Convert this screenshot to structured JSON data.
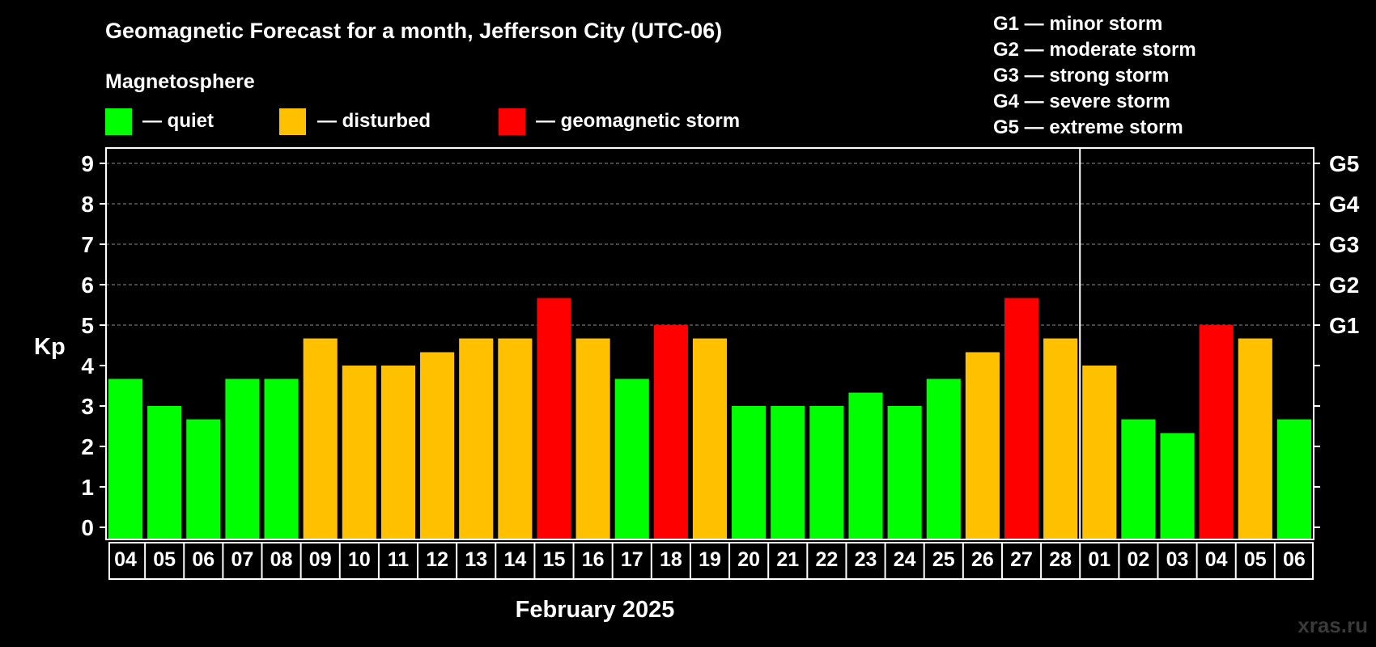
{
  "chart_data": {
    "type": "bar",
    "title": "Geomagnetic Forecast for a month, Jefferson City (UTC-06)",
    "subtitle": "Magnetosphere",
    "xlabel": "February 2025",
    "ylabel": "Kp",
    "ylim": [
      0,
      9
    ],
    "y_ticks": [
      "0",
      "1",
      "2",
      "3",
      "4",
      "5",
      "6",
      "7",
      "8",
      "9"
    ],
    "legend": [
      {
        "label": "— quiet",
        "color": "#00ff00"
      },
      {
        "label": "— disturbed",
        "color": "#ffc000"
      },
      {
        "label": "— geomagnetic storm",
        "color": "#ff0000"
      }
    ],
    "storm_scale": [
      {
        "label": "G1",
        "kp": 5
      },
      {
        "label": "G2",
        "kp": 6
      },
      {
        "label": "G3",
        "kp": 7
      },
      {
        "label": "G4",
        "kp": 8
      },
      {
        "label": "G5",
        "kp": 9
      }
    ],
    "storm_legend": [
      "G1 — minor storm",
      "G2 — moderate storm",
      "G3 — strong storm",
      "G4 — severe storm",
      "G5 — extreme storm"
    ],
    "month_divider_after": "28",
    "categories": [
      "04",
      "05",
      "06",
      "07",
      "08",
      "09",
      "10",
      "11",
      "12",
      "13",
      "14",
      "15",
      "16",
      "17",
      "18",
      "19",
      "20",
      "21",
      "22",
      "23",
      "24",
      "25",
      "26",
      "27",
      "28",
      "01",
      "02",
      "03",
      "04",
      "05",
      "06"
    ],
    "values": [
      3.67,
      3.0,
      2.67,
      3.67,
      3.67,
      4.67,
      4.0,
      4.0,
      4.33,
      4.67,
      4.67,
      5.67,
      4.67,
      3.67,
      5.0,
      4.67,
      3.0,
      3.0,
      3.0,
      3.33,
      3.0,
      3.67,
      4.33,
      5.67,
      4.67,
      4.0,
      2.67,
      2.33,
      5.0,
      4.67,
      2.67
    ],
    "levels": [
      "quiet",
      "quiet",
      "quiet",
      "quiet",
      "quiet",
      "disturbed",
      "disturbed",
      "disturbed",
      "disturbed",
      "disturbed",
      "disturbed",
      "storm",
      "disturbed",
      "quiet",
      "storm",
      "disturbed",
      "quiet",
      "quiet",
      "quiet",
      "quiet",
      "quiet",
      "quiet",
      "disturbed",
      "storm",
      "disturbed",
      "disturbed",
      "quiet",
      "quiet",
      "storm",
      "disturbed",
      "quiet"
    ]
  },
  "colors": {
    "quiet": "#00ff00",
    "disturbed": "#ffc000",
    "storm": "#ff0000",
    "background": "#000000",
    "text": "#ffffff"
  },
  "watermark": "xras.ru"
}
